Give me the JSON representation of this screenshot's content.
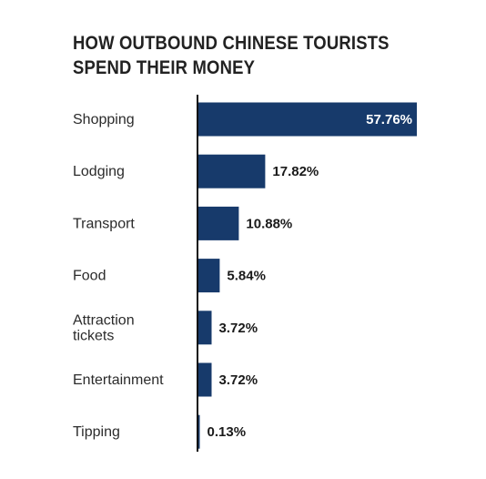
{
  "colors": {
    "bar": "#173a6b",
    "axis": "#111111",
    "text": "#222222"
  },
  "chart_data": {
    "type": "bar",
    "orientation": "horizontal",
    "title": "HOW OUTBOUND CHINESE TOURISTS SPEND THEIR MONEY",
    "title_lines": [
      "HOW OUTBOUND CHINESE TOURISTS",
      "SPEND THEIR MONEY"
    ],
    "xlabel": "",
    "ylabel": "",
    "unit": "%",
    "xlim": [
      0,
      57.76
    ],
    "grid": false,
    "categories": [
      [
        "Shopping"
      ],
      [
        "Lodging"
      ],
      [
        "Transport"
      ],
      [
        "Food"
      ],
      [
        "Attraction",
        "tickets"
      ],
      [
        "Entertainment"
      ],
      [
        "Tipping"
      ]
    ],
    "values": [
      57.76,
      17.82,
      10.88,
      5.84,
      3.72,
      3.72,
      0.13
    ],
    "value_labels": [
      "57.76%",
      "17.82%",
      "10.88%",
      "5.84%",
      "3.72%",
      "3.72%",
      "0.13%"
    ]
  }
}
